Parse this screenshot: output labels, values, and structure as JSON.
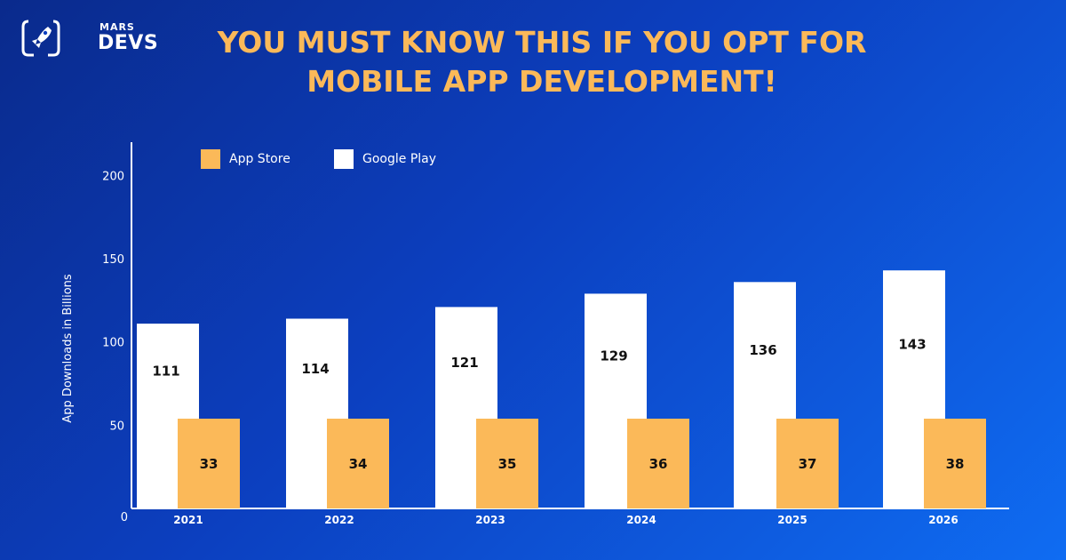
{
  "brand": {
    "small": "MARS",
    "big": "DEVS"
  },
  "header": {
    "title_line1": "YOU MUST KNOW THIS IF YOU OPT FOR",
    "title_line2": "MOBILE APP DEVELOPMENT!"
  },
  "colors": {
    "app_store": "#fbb959",
    "google_play": "#ffffff",
    "title": "#fbb959"
  },
  "chart_data": {
    "type": "bar",
    "categories": [
      "2021",
      "2022",
      "2023",
      "2024",
      "2025",
      "2026"
    ],
    "series": [
      {
        "name": "App Store",
        "values": [
          33,
          34,
          35,
          36,
          37,
          38
        ],
        "value_labels": [
          "33",
          "34",
          "35",
          "36",
          "37",
          "38"
        ]
      },
      {
        "name": "Google Play",
        "values": [
          111,
          114,
          121,
          129,
          136,
          143
        ],
        "value_labels": [
          "111",
          "114",
          "121",
          "129",
          "136",
          "143"
        ]
      }
    ],
    "ylabel": "App Downloads in Billions",
    "yticks": [
      0,
      50,
      100,
      150,
      200
    ],
    "ytick_labels": [
      "0",
      "50",
      "100",
      "150",
      "200"
    ],
    "ylim": [
      0,
      220
    ],
    "legend": "top-left",
    "grid": false
  }
}
